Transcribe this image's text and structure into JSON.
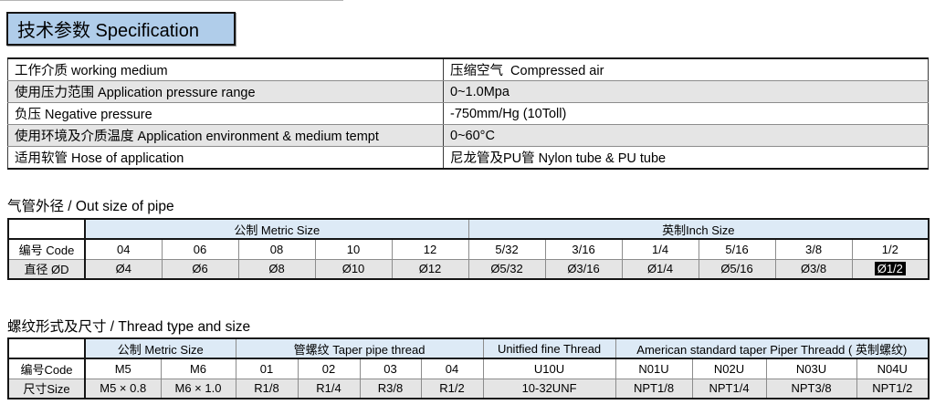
{
  "title": "技术参数 Specification",
  "colors": {
    "title_bg": "#b0cdea",
    "header_bg": "#ddeaf6",
    "shade_bg": "#e5e5e5",
    "highlight_bg": "#000000",
    "highlight_fg": "#ffffff",
    "border_dark": "#151515"
  },
  "spec_table": {
    "rows": [
      {
        "label": "工作介质 working medium",
        "value": "压缩空气  Compressed air",
        "shaded": false
      },
      {
        "label": "使用压力范围 Application pressure range",
        "value": "0~1.0Mpa",
        "shaded": true
      },
      {
        "label": "负压 Negative pressure",
        "value": "-750mm/Hg (10Toll)",
        "shaded": false
      },
      {
        "label": "使用环境及介质温度 Application environment & medium tempt",
        "value": "0~60°C",
        "shaded": true
      },
      {
        "label": "适用软管 Hose of application",
        "value": "尼龙管及PU管 Nylon tube & PU tube",
        "shaded": false
      }
    ]
  },
  "pipe_section": {
    "title": "气管外径 / Out size of pipe",
    "groups": [
      {
        "label": "公制 Metric Size",
        "span": 5
      },
      {
        "label": "英制Inch Size",
        "span": 6
      }
    ],
    "row_labels": [
      "编号 Code",
      "直径 ØD"
    ],
    "codes": [
      "04",
      "06",
      "08",
      "10",
      "12",
      "5/32",
      "3/16",
      "1/4",
      "5/16",
      "3/8",
      "1/2"
    ],
    "diameters": [
      "Ø4",
      "Ø6",
      "Ø8",
      "Ø10",
      "Ø12",
      "Ø5/32",
      "Ø3/16",
      "Ø1/4",
      "Ø5/16",
      "Ø3/8",
      "Ø1/2"
    ],
    "highlighted_index": 10
  },
  "thread_section": {
    "title": "螺纹形式及尺寸 / Thread type and size",
    "groups": [
      {
        "label": "公制 Metric Size",
        "span": 2
      },
      {
        "label": "管螺纹 Taper pipe thread",
        "span": 4
      },
      {
        "label": "Unitfied fine Thread",
        "span": 1
      },
      {
        "label": "American standard taper Piper Threadd ( 英制螺纹)",
        "span": 4
      }
    ],
    "row_labels": [
      "编号Code",
      "尺寸Size"
    ],
    "codes": [
      "M5",
      "M6",
      "01",
      "02",
      "03",
      "04",
      "U10U",
      "N01U",
      "N02U",
      "N03U",
      "N04U"
    ],
    "sizes": [
      "M5 × 0.8",
      "M6 × 1.0",
      "R1/8",
      "R1/4",
      "R3/8",
      "R1/2",
      "10-32UNF",
      "NPT1/8",
      "NPT1/4",
      "NPT3/8",
      "NPT1/2"
    ]
  }
}
